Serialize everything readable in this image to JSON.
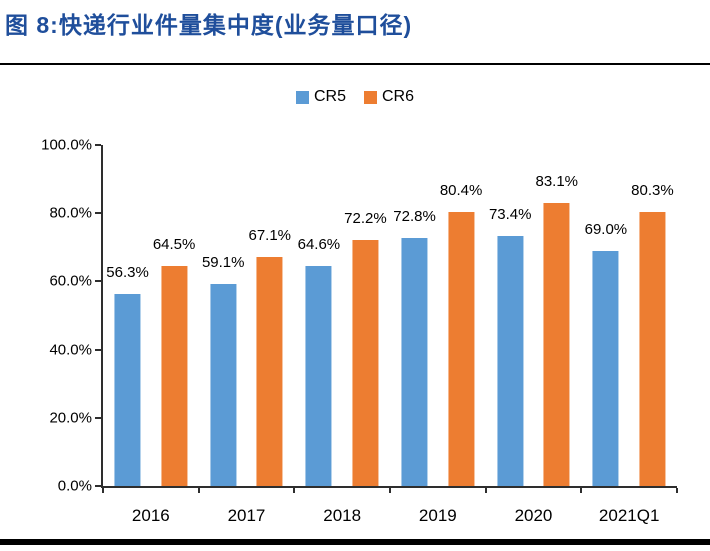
{
  "figure": {
    "title": "图 8:快递行业件量集中度(业务量口径)"
  },
  "legend": {
    "items": [
      {
        "label": "CR5",
        "color": "#5B9BD5"
      },
      {
        "label": "CR6",
        "color": "#ED7D31"
      }
    ]
  },
  "chart_data": {
    "type": "bar",
    "categories": [
      "2016",
      "2017",
      "2018",
      "2019",
      "2020",
      "2021Q1"
    ],
    "series": [
      {
        "name": "CR5",
        "color": "#5B9BD5",
        "values": [
          56.3,
          59.1,
          64.6,
          72.8,
          73.4,
          69.0
        ],
        "labels": [
          "56.3%",
          "59.1%",
          "64.6%",
          "72.8%",
          "73.4%",
          "69.0%"
        ]
      },
      {
        "name": "CR6",
        "color": "#ED7D31",
        "values": [
          64.5,
          67.1,
          72.2,
          80.4,
          83.1,
          80.3
        ],
        "labels": [
          "64.5%",
          "67.1%",
          "72.2%",
          "80.4%",
          "83.1%",
          "80.3%"
        ]
      }
    ],
    "ylim": [
      0,
      100
    ],
    "ytick_values": [
      100,
      80,
      60,
      40,
      20,
      0
    ],
    "ytick_labels": [
      "100.0%",
      "80.0%",
      "60.0%",
      "40.0%",
      "20.0%",
      "0.0%"
    ],
    "grid": false,
    "legend_position": "top",
    "data_labels": "outside-end"
  },
  "colors": {
    "title": "#1F4E9B",
    "axis": "#2e2e2e",
    "rule": "#000000",
    "cr5": "#5B9BD5",
    "cr6": "#ED7D31"
  }
}
